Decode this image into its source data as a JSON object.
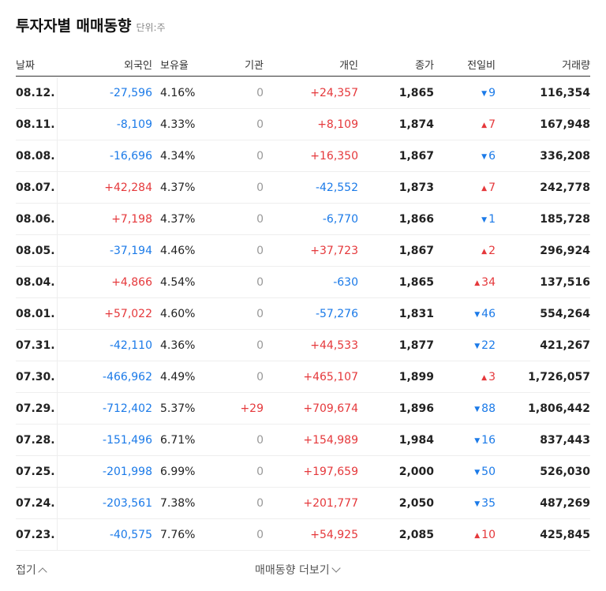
{
  "header": {
    "title": "투자자별 매매동향",
    "unit": "단위:주"
  },
  "table": {
    "columns": [
      "날짜",
      "외국인",
      "보유율",
      "기관",
      "개인",
      "종가",
      "전일비",
      "거래량"
    ],
    "rows": [
      [
        "08.12.",
        "-27,596",
        "4.16%",
        "0",
        "+24,357",
        "1,865",
        {
          "arrow": "▼",
          "value": "9"
        },
        "116,354"
      ],
      [
        "08.11.",
        "-8,109",
        "4.33%",
        "0",
        "+8,109",
        "1,874",
        {
          "arrow": "▲",
          "value": "7"
        },
        "167,948"
      ],
      [
        "08.08.",
        "-16,696",
        "4.34%",
        "0",
        "+16,350",
        "1,867",
        {
          "arrow": "▼",
          "value": "6"
        },
        "336,208"
      ],
      [
        "08.07.",
        "+42,284",
        "4.37%",
        "0",
        "-42,552",
        "1,873",
        {
          "arrow": "▲",
          "value": "7"
        },
        "242,778"
      ],
      [
        "08.06.",
        "+7,198",
        "4.37%",
        "0",
        "-6,770",
        "1,866",
        {
          "arrow": "▼",
          "value": "1"
        },
        "185,728"
      ],
      [
        "08.05.",
        "-37,194",
        "4.46%",
        "0",
        "+37,723",
        "1,867",
        {
          "arrow": "▲",
          "value": "2"
        },
        "296,924"
      ],
      [
        "08.04.",
        "+4,866",
        "4.54%",
        "0",
        "-630",
        "1,865",
        {
          "arrow": "▲",
          "value": "34"
        },
        "137,516"
      ],
      [
        "08.01.",
        "+57,022",
        "4.60%",
        "0",
        "-57,276",
        "1,831",
        {
          "arrow": "▼",
          "value": "46"
        },
        "554,264"
      ],
      [
        "07.31.",
        "-42,110",
        "4.36%",
        "0",
        "+44,533",
        "1,877",
        {
          "arrow": "▼",
          "value": "22"
        },
        "421,267"
      ],
      [
        "07.30.",
        "-466,962",
        "4.49%",
        "0",
        "+465,107",
        "1,899",
        {
          "arrow": "▲",
          "value": "3"
        },
        "1,726,057"
      ],
      [
        "07.29.",
        "-712,402",
        "5.37%",
        "+29",
        "+709,674",
        "1,896",
        {
          "arrow": "▼",
          "value": "88"
        },
        "1,806,442"
      ],
      [
        "07.28.",
        "-151,496",
        "6.71%",
        "0",
        "+154,989",
        "1,984",
        {
          "arrow": "▼",
          "value": "16"
        },
        "837,443"
      ],
      [
        "07.25.",
        "-201,998",
        "6.99%",
        "0",
        "+197,659",
        "2,000",
        {
          "arrow": "▼",
          "value": "50"
        },
        "526,030"
      ],
      [
        "07.24.",
        "-203,561",
        "7.38%",
        "0",
        "+201,777",
        "2,050",
        {
          "arrow": "▼",
          "value": "35"
        },
        "487,269"
      ],
      [
        "07.23.",
        "-40,575",
        "7.76%",
        "0",
        "+54,925",
        "2,085",
        {
          "arrow": "▲",
          "value": "10"
        },
        "425,845"
      ]
    ]
  },
  "footer": {
    "collapse": "접기",
    "more": "매매동향 더보기"
  }
}
